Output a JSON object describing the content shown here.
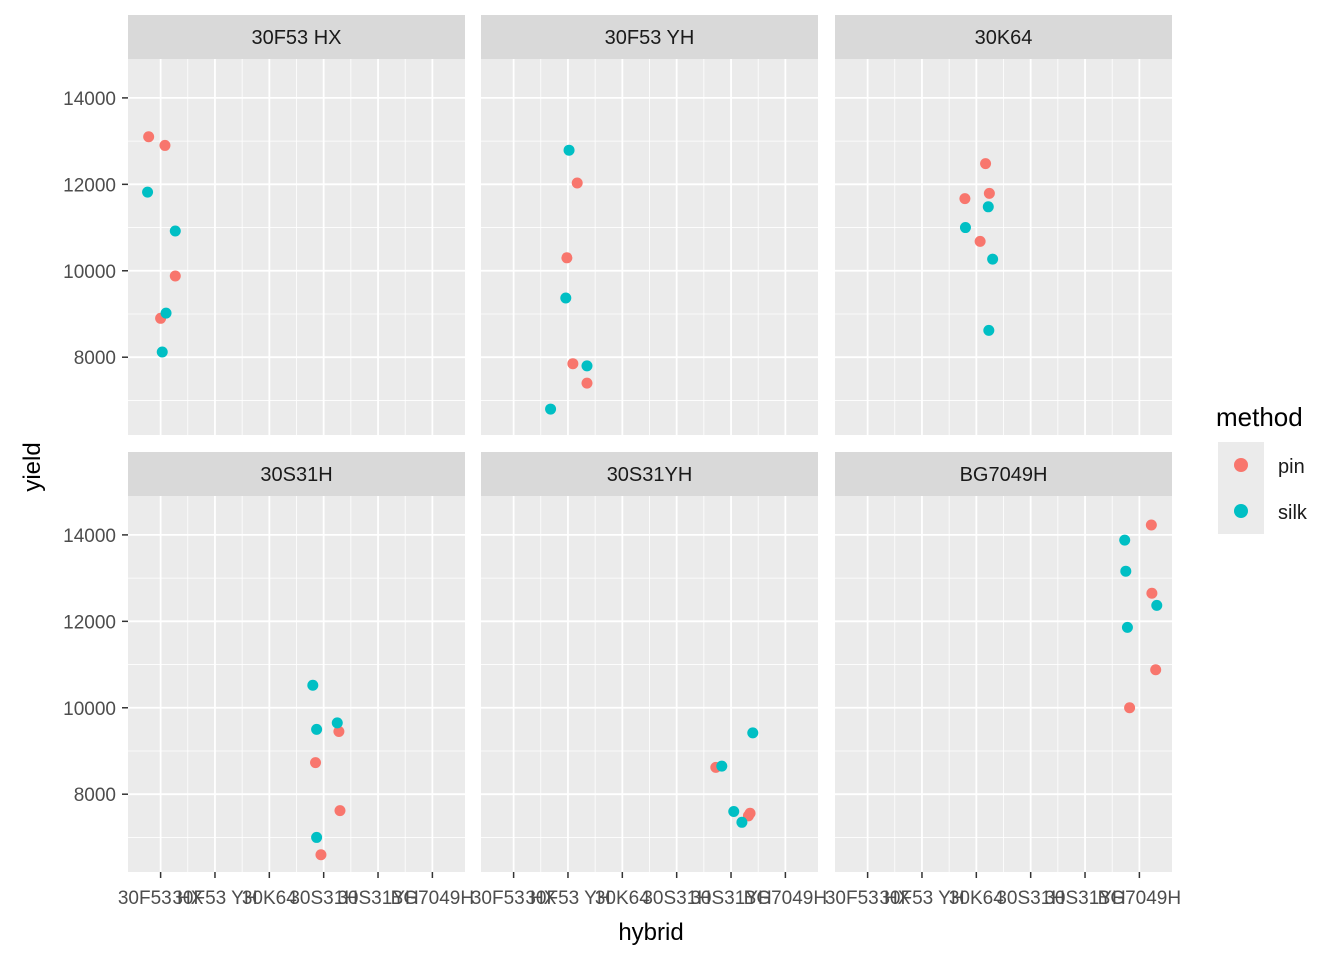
{
  "chart_data": {
    "type": "scatter",
    "facet_by": "hybrid",
    "xlabel": "hybrid",
    "ylabel": "yield",
    "x_categories": [
      "30F53 HX",
      "30F53 YH",
      "30K64",
      "30S31H",
      "30S31YH",
      "BG7049H"
    ],
    "x_tick_labels": [
      "30F53 HX",
      "30F53 YH",
      "30K64",
      "30S31H",
      "30S31YH",
      "BG7049H"
    ],
    "y_ticks": [
      8000,
      10000,
      12000,
      14000
    ],
    "ylim": [
      6200,
      14900
    ],
    "grid": true,
    "legend": {
      "title": "method",
      "position": "right"
    },
    "series": [
      {
        "name": "pin",
        "color": "#F8766D"
      },
      {
        "name": "silk",
        "color": "#00BFC4"
      }
    ],
    "facets": [
      {
        "label": "30F53 HX",
        "points": [
          {
            "x": 0.78,
            "y": 13100,
            "method": "pin"
          },
          {
            "x": 1.08,
            "y": 12900,
            "method": "pin"
          },
          {
            "x": 1.27,
            "y": 9880,
            "method": "pin"
          },
          {
            "x": 1.0,
            "y": 8900,
            "method": "pin"
          },
          {
            "x": 0.76,
            "y": 11820,
            "method": "silk"
          },
          {
            "x": 1.27,
            "y": 10920,
            "method": "silk"
          },
          {
            "x": 1.1,
            "y": 9020,
            "method": "silk"
          },
          {
            "x": 1.03,
            "y": 8120,
            "method": "silk"
          }
        ]
      },
      {
        "label": "30F53 YH",
        "points": [
          {
            "x": 2.17,
            "y": 12030,
            "method": "pin"
          },
          {
            "x": 1.98,
            "y": 10300,
            "method": "pin"
          },
          {
            "x": 2.09,
            "y": 7850,
            "method": "pin"
          },
          {
            "x": 2.35,
            "y": 7400,
            "method": "pin"
          },
          {
            "x": 2.02,
            "y": 12790,
            "method": "silk"
          },
          {
            "x": 1.96,
            "y": 9370,
            "method": "silk"
          },
          {
            "x": 2.35,
            "y": 7800,
            "method": "silk"
          },
          {
            "x": 1.68,
            "y": 6800,
            "method": "silk"
          }
        ]
      },
      {
        "label": "30K64",
        "points": [
          {
            "x": 3.17,
            "y": 12480,
            "method": "pin"
          },
          {
            "x": 2.79,
            "y": 11670,
            "method": "pin"
          },
          {
            "x": 3.24,
            "y": 11790,
            "method": "pin"
          },
          {
            "x": 3.07,
            "y": 10680,
            "method": "pin"
          },
          {
            "x": 2.8,
            "y": 11000,
            "method": "silk"
          },
          {
            "x": 3.22,
            "y": 11480,
            "method": "silk"
          },
          {
            "x": 3.3,
            "y": 10270,
            "method": "silk"
          },
          {
            "x": 3.23,
            "y": 8620,
            "method": "silk"
          }
        ]
      },
      {
        "label": "30S31H",
        "points": [
          {
            "x": 4.28,
            "y": 9450,
            "method": "pin"
          },
          {
            "x": 3.85,
            "y": 8730,
            "method": "pin"
          },
          {
            "x": 4.3,
            "y": 7620,
            "method": "pin"
          },
          {
            "x": 3.95,
            "y": 6600,
            "method": "pin"
          },
          {
            "x": 3.8,
            "y": 10520,
            "method": "silk"
          },
          {
            "x": 3.87,
            "y": 9500,
            "method": "silk"
          },
          {
            "x": 4.25,
            "y": 9650,
            "method": "silk"
          },
          {
            "x": 3.87,
            "y": 7000,
            "method": "silk"
          }
        ]
      },
      {
        "label": "30S31YH",
        "points": [
          {
            "x": 4.72,
            "y": 8620,
            "method": "pin"
          },
          {
            "x": 5.35,
            "y": 7560,
            "method": "pin"
          },
          {
            "x": 5.32,
            "y": 7500,
            "method": "pin"
          },
          {
            "x": 4.83,
            "y": 8650,
            "method": "silk"
          },
          {
            "x": 5.4,
            "y": 9420,
            "method": "silk"
          },
          {
            "x": 5.05,
            "y": 7600,
            "method": "silk"
          },
          {
            "x": 5.2,
            "y": 7350,
            "method": "silk"
          }
        ]
      },
      {
        "label": "BG7049H",
        "points": [
          {
            "x": 6.22,
            "y": 14230,
            "method": "pin"
          },
          {
            "x": 6.23,
            "y": 12650,
            "method": "pin"
          },
          {
            "x": 6.3,
            "y": 10880,
            "method": "pin"
          },
          {
            "x": 5.82,
            "y": 10000,
            "method": "pin"
          },
          {
            "x": 5.73,
            "y": 13880,
            "method": "silk"
          },
          {
            "x": 5.75,
            "y": 13160,
            "method": "silk"
          },
          {
            "x": 6.32,
            "y": 12370,
            "method": "silk"
          },
          {
            "x": 5.78,
            "y": 11860,
            "method": "silk"
          }
        ]
      }
    ]
  }
}
